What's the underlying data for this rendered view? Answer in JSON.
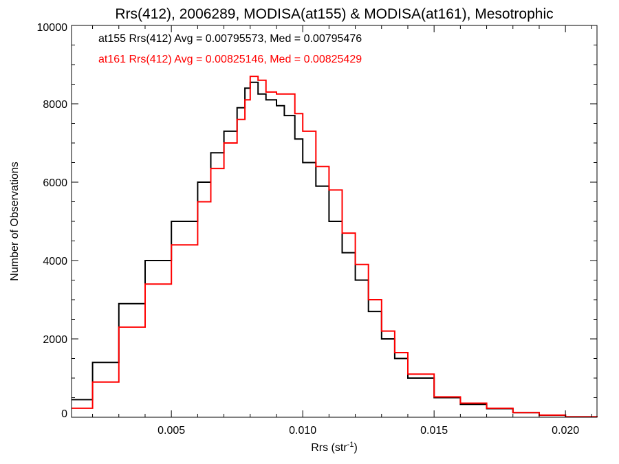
{
  "chart_data": {
    "type": "line",
    "title": "Rrs(412), 2006289, MODISA(at155) & MODISA(at161), Mesotrophic",
    "xlabel": "Rrs (str",
    "xlabel_sup": "-1",
    "xlabel_close": ")",
    "ylabel": "Number of Observations",
    "xlim": [
      0.0012,
      0.0212
    ],
    "ylim": [
      0,
      10000
    ],
    "xticks": [
      0.005,
      0.01,
      0.015,
      0.02
    ],
    "xtick_labels": [
      "0.005",
      "0.010",
      "0.015",
      "0.020"
    ],
    "yticks": [
      0,
      2000,
      4000,
      6000,
      8000,
      10000
    ],
    "ytick_labels": [
      "0",
      "2000",
      "4000",
      "6000",
      "8000",
      "10000"
    ],
    "grid": false,
    "step": true,
    "series": [
      {
        "name": "at155",
        "color": "#000000",
        "annotation": "at155 Rrs(412) Avg = 0.00795573, Med = 0.00795476",
        "x": [
          0.0012,
          0.002,
          0.003,
          0.004,
          0.005,
          0.006,
          0.0065,
          0.007,
          0.0075,
          0.0078,
          0.008,
          0.0083,
          0.0086,
          0.009,
          0.0093,
          0.0097,
          0.01,
          0.0105,
          0.011,
          0.0115,
          0.012,
          0.0125,
          0.013,
          0.0135,
          0.014,
          0.015,
          0.016,
          0.017,
          0.018,
          0.019,
          0.02,
          0.0212
        ],
        "y": [
          450,
          1400,
          2900,
          4000,
          5000,
          6000,
          6750,
          7300,
          7900,
          8400,
          8550,
          8250,
          8100,
          7950,
          7700,
          7100,
          6500,
          5900,
          5000,
          4200,
          3500,
          2700,
          2000,
          1500,
          1000,
          500,
          330,
          220,
          120,
          50,
          10,
          0
        ]
      },
      {
        "name": "at161",
        "color": "#ff0000",
        "annotation": "at161 Rrs(412) Avg = 0.00825146, Med = 0.00825429",
        "x": [
          0.0012,
          0.002,
          0.003,
          0.004,
          0.005,
          0.006,
          0.0065,
          0.007,
          0.0075,
          0.0078,
          0.008,
          0.0083,
          0.0086,
          0.009,
          0.0093,
          0.0097,
          0.01,
          0.0105,
          0.011,
          0.0115,
          0.012,
          0.0125,
          0.013,
          0.0135,
          0.014,
          0.015,
          0.016,
          0.017,
          0.018,
          0.019,
          0.02,
          0.0212
        ],
        "y": [
          230,
          900,
          2300,
          3400,
          4400,
          5500,
          6350,
          7000,
          7600,
          8100,
          8700,
          8600,
          8300,
          8250,
          8250,
          7750,
          7300,
          6400,
          5800,
          4700,
          3900,
          3000,
          2200,
          1650,
          1100,
          520,
          360,
          230,
          120,
          55,
          10,
          0
        ]
      }
    ]
  }
}
